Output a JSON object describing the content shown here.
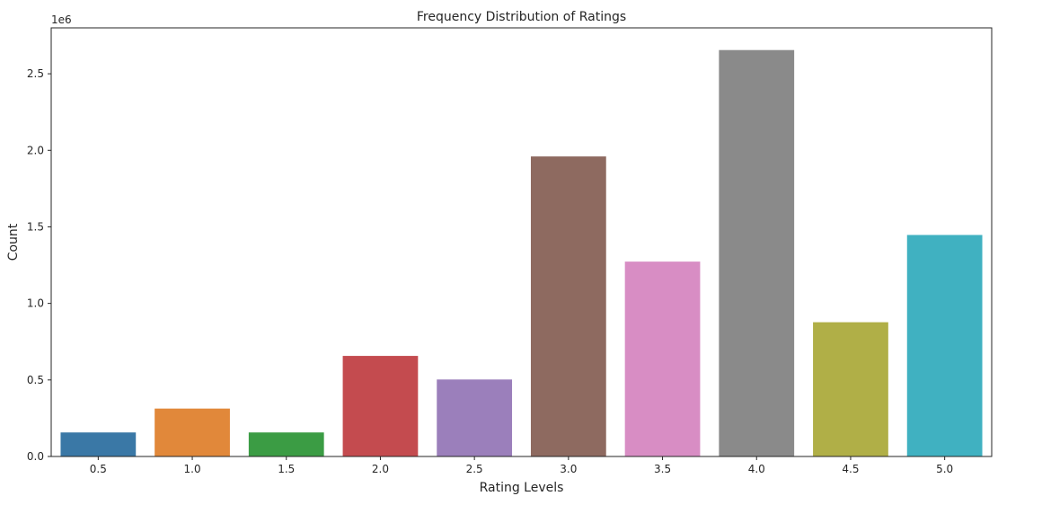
{
  "chart_data": {
    "type": "bar",
    "title": "Frequency Distribution of Ratings",
    "xlabel": "Rating Levels",
    "ylabel": "Count",
    "offset_label": "1e6",
    "categories": [
      "0.5",
      "1.0",
      "1.5",
      "2.0",
      "2.5",
      "3.0",
      "3.5",
      "4.0",
      "4.5",
      "5.0"
    ],
    "values": [
      157000,
      313000,
      157000,
      657000,
      503000,
      1960000,
      1273000,
      2655000,
      877000,
      1447000
    ],
    "colors": [
      "#3a78a6",
      "#e1883a",
      "#3b9c44",
      "#c44b4f",
      "#9b7fbb",
      "#8e6a60",
      "#d88dc4",
      "#8a8a8a",
      "#b0af47",
      "#40b1c1"
    ],
    "ylim": [
      0,
      2800000
    ],
    "yticks": [
      0,
      500000,
      1000000,
      1500000,
      2000000,
      2500000
    ],
    "ytick_labels": [
      "0.0",
      "0.5",
      "1.0",
      "1.5",
      "2.0",
      "2.5"
    ],
    "grid": false,
    "legend": "none"
  }
}
